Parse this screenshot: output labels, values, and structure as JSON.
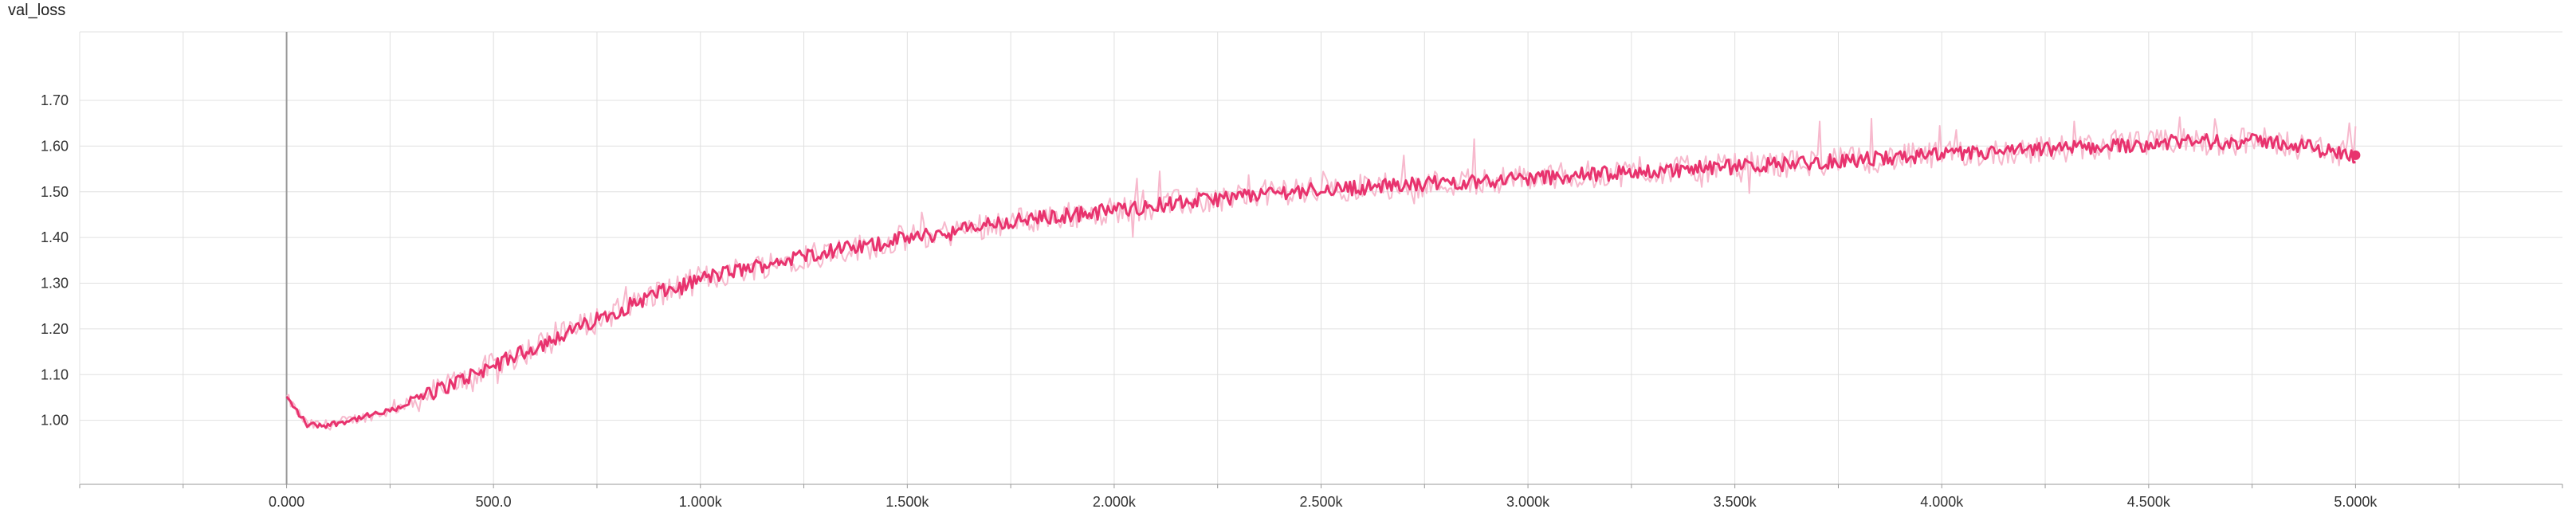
{
  "chart_data": {
    "type": "line",
    "title": "val_loss",
    "xlabel": "",
    "ylabel": "",
    "xlim": [
      -500,
      5500
    ],
    "ylim": [
      0.86,
      1.85
    ],
    "x_ticks": [
      0,
      500,
      1000,
      1500,
      2000,
      2500,
      3000,
      3500,
      4000,
      4500,
      5000
    ],
    "x_tick_labels": [
      "0.000",
      "500.0",
      "1.000k",
      "1.500k",
      "2.000k",
      "2.500k",
      "3.000k",
      "3.500k",
      "4.000k",
      "4.500k",
      "5.000k"
    ],
    "y_ticks": [
      1.0,
      1.1,
      1.2,
      1.3,
      1.4,
      1.5,
      1.6,
      1.7
    ],
    "y_tick_labels": [
      "1.00",
      "1.10",
      "1.20",
      "1.30",
      "1.40",
      "1.50",
      "1.60",
      "1.70"
    ],
    "grid": true,
    "legend": "none",
    "colors": {
      "smoothed": "#e8336e",
      "raw": "#f7b9cd",
      "grid": "#e0e0e0",
      "axis": "#999999"
    },
    "series": [
      {
        "role": "smoothed",
        "x": [
          0,
          50,
          100,
          150,
          200,
          250,
          300,
          350,
          400,
          450,
          500,
          550,
          600,
          650,
          700,
          750,
          800,
          850,
          900,
          950,
          1000,
          1100,
          1200,
          1300,
          1400,
          1500,
          1600,
          1700,
          1800,
          1900,
          2000,
          2200,
          2400,
          2600,
          2800,
          3000,
          3200,
          3400,
          3600,
          3800,
          4000,
          4200,
          4400,
          4600,
          4800,
          5000
        ],
        "y": [
          1.05,
          0.99,
          0.99,
          1.0,
          1.01,
          1.02,
          1.04,
          1.06,
          1.08,
          1.1,
          1.12,
          1.14,
          1.16,
          1.18,
          1.2,
          1.22,
          1.24,
          1.26,
          1.28,
          1.29,
          1.31,
          1.33,
          1.35,
          1.37,
          1.38,
          1.4,
          1.41,
          1.43,
          1.44,
          1.45,
          1.46,
          1.48,
          1.5,
          1.51,
          1.52,
          1.53,
          1.54,
          1.55,
          1.56,
          1.57,
          1.58,
          1.59,
          1.6,
          1.61,
          1.61,
          1.58
        ]
      }
    ],
    "end_marker": {
      "x": 5000,
      "y": 1.58
    }
  }
}
